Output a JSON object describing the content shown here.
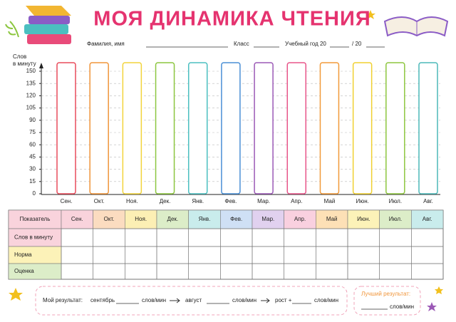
{
  "header": {
    "title": "МОЯ ДИНАМИКА ЧТЕНИЯ",
    "name_label": "Фамилия, имя",
    "class_label": "Класс",
    "year_label": "Учебный год 20",
    "year_sep": "/ 20"
  },
  "chart": {
    "y_label": [
      "Слов",
      "в минуту"
    ],
    "yticks": [
      0,
      15,
      30,
      45,
      60,
      75,
      90,
      105,
      120,
      135,
      150
    ],
    "ylim": [
      0,
      150
    ],
    "grid": true,
    "months": [
      "Сен.",
      "Окт.",
      "Ноя.",
      "Дек.",
      "Янв.",
      "Фев.",
      "Мар.",
      "Апр.",
      "Май",
      "Июн.",
      "Июл.",
      "Авг."
    ],
    "column_colors": [
      "#e94b5b",
      "#f0953a",
      "#f2d43b",
      "#8cc63f",
      "#4bbfc0",
      "#4a8fd6",
      "#9b59b6",
      "#e8558a",
      "#f29a3a",
      "#f0d030",
      "#8dc63f",
      "#4bb8b8"
    ]
  },
  "table": {
    "corner": "Показатель",
    "header_colors": [
      "#f9d3dc",
      "#fbdcc0",
      "#fcefb4",
      "#dcedc8",
      "#c9ecec",
      "#cfe0f5",
      "#e1d1ef",
      "#f9d0df",
      "#fde0b6",
      "#fcf2b8",
      "#dcedc8",
      "#c9ecec"
    ],
    "rows": [
      "Слов в минуту",
      "Норма",
      "Оценка"
    ],
    "row_colors": [
      "#f9d3dc",
      "#fcf2b8",
      "#dcedc8"
    ]
  },
  "footer": {
    "my_result": "Мой результат:",
    "september": "сентябрь",
    "unit1": "слов/мин",
    "august": "август",
    "unit2": "слов/мин",
    "growth": "рост +",
    "unit3": "слов/мин",
    "best_result": "Лучший результат:",
    "unit4": "слов/мин"
  }
}
